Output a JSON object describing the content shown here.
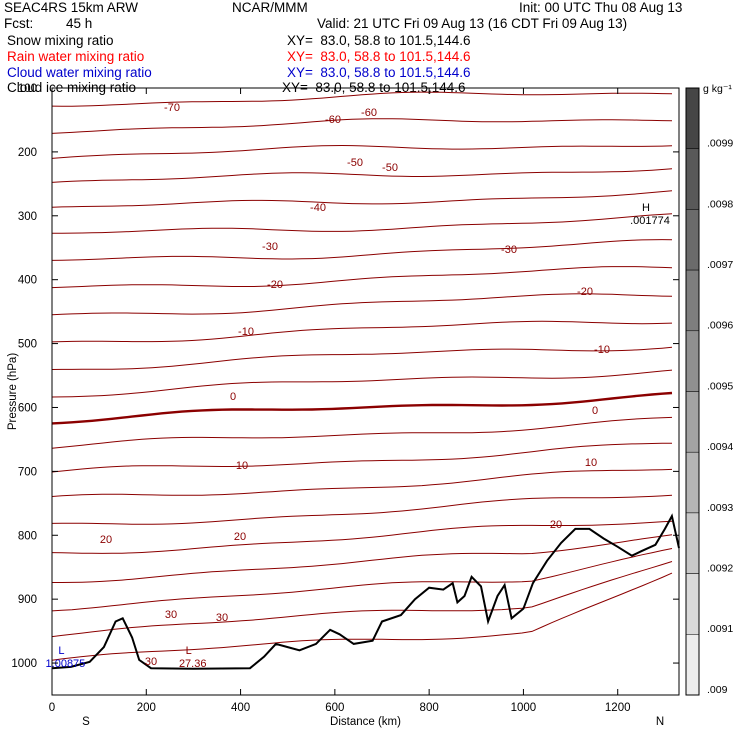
{
  "header": {
    "model": "SEAC4RS 15km ARW",
    "center": "NCAR/MMM",
    "init": "Init: 00 UTC Thu 08 Aug 13",
    "fcst_label": "Fcst:",
    "fcst_value": "45 h",
    "valid": "Valid: 21 UTC Fri 09 Aug 13 (16 CDT Fri 09 Aug 13)"
  },
  "fields": [
    {
      "name": "Snow mixing ratio",
      "xy": "XY=  83.0, 58.8 to 101.5,144.6",
      "color": "#000000"
    },
    {
      "name": "Rain water mixing ratio",
      "xy": "XY=  83.0, 58.8 to 101.5,144.6",
      "color": "#ff0000"
    },
    {
      "name": "Cloud water mixing ratio",
      "xy": "XY=  83.0, 58.8 to 101.5,144.6",
      "color": "#0000cc"
    },
    {
      "name": "Cloud ice mixing ratio",
      "xy": "XY=  83.0, 58.8 to 101.5,144.6",
      "color": "#000000"
    }
  ],
  "chart_data": {
    "type": "line",
    "xlabel": "Distance (km)",
    "ylabel": "Pressure (hPa)",
    "xlim": [
      0,
      1330
    ],
    "ylim": [
      1050,
      100
    ],
    "x_ticks": [
      "0",
      "200",
      "400",
      "600",
      "800",
      "1000",
      "1200"
    ],
    "y_ticks": [
      "100",
      "200",
      "300",
      "400",
      "500",
      "600",
      "700",
      "800",
      "900",
      "1000"
    ],
    "x_end_labels": {
      "left": "S",
      "right": "N"
    },
    "contour_color": "#8b0000",
    "contour_interval": 5,
    "contour_labels": [
      "-70",
      "-60",
      "-60",
      "-50",
      "-50",
      "-40",
      "-30",
      "-30",
      "-20",
      "-20",
      "-10",
      "-10",
      "0",
      "0",
      "10",
      "10",
      "20",
      "20",
      "20",
      "30",
      "30",
      "30"
    ],
    "extrema": [
      {
        "type": "H",
        "value": ".001774",
        "x_km": 1260,
        "p": 302
      },
      {
        "type": "L",
        "value": "27.36",
        "x_km": 290,
        "p": 995
      },
      {
        "type": "L",
        "value": "1.00875",
        "x_km": 20,
        "p": 995
      }
    ],
    "terrain": [
      {
        "x": 0,
        "p": 1008
      },
      {
        "x": 40,
        "p": 1006
      },
      {
        "x": 80,
        "p": 998
      },
      {
        "x": 110,
        "p": 975
      },
      {
        "x": 135,
        "p": 935
      },
      {
        "x": 150,
        "p": 930
      },
      {
        "x": 170,
        "p": 960
      },
      {
        "x": 185,
        "p": 995
      },
      {
        "x": 210,
        "p": 1008
      },
      {
        "x": 300,
        "p": 1009
      },
      {
        "x": 420,
        "p": 1008
      },
      {
        "x": 450,
        "p": 990
      },
      {
        "x": 475,
        "p": 970
      },
      {
        "x": 500,
        "p": 975
      },
      {
        "x": 525,
        "p": 980
      },
      {
        "x": 560,
        "p": 970
      },
      {
        "x": 590,
        "p": 948
      },
      {
        "x": 610,
        "p": 955
      },
      {
        "x": 640,
        "p": 970
      },
      {
        "x": 680,
        "p": 965
      },
      {
        "x": 700,
        "p": 935
      },
      {
        "x": 740,
        "p": 925
      },
      {
        "x": 770,
        "p": 900
      },
      {
        "x": 800,
        "p": 882
      },
      {
        "x": 830,
        "p": 885
      },
      {
        "x": 850,
        "p": 875
      },
      {
        "x": 860,
        "p": 905
      },
      {
        "x": 875,
        "p": 895
      },
      {
        "x": 890,
        "p": 865
      },
      {
        "x": 910,
        "p": 880
      },
      {
        "x": 925,
        "p": 935
      },
      {
        "x": 945,
        "p": 895
      },
      {
        "x": 960,
        "p": 878
      },
      {
        "x": 975,
        "p": 930
      },
      {
        "x": 1000,
        "p": 915
      },
      {
        "x": 1020,
        "p": 875
      },
      {
        "x": 1050,
        "p": 840
      },
      {
        "x": 1080,
        "p": 812
      },
      {
        "x": 1110,
        "p": 790
      },
      {
        "x": 1140,
        "p": 790
      },
      {
        "x": 1170,
        "p": 805
      },
      {
        "x": 1200,
        "p": 818
      },
      {
        "x": 1230,
        "p": 832
      },
      {
        "x": 1250,
        "p": 825
      },
      {
        "x": 1280,
        "p": 815
      },
      {
        "x": 1300,
        "p": 790
      },
      {
        "x": 1315,
        "p": 770
      },
      {
        "x": 1330,
        "p": 820
      }
    ],
    "colorbar": {
      "unit": "g kg⁻¹",
      "labels": [
        ".0099",
        ".0098",
        ".0097",
        ".0096",
        ".0095",
        ".0094",
        ".0093",
        ".0092",
        ".0091",
        ".009"
      ],
      "range": [
        0.009,
        0.01
      ]
    }
  }
}
